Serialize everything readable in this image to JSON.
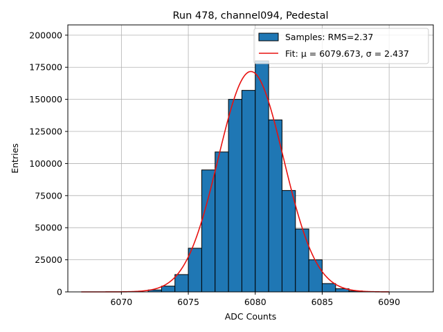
{
  "chart_data": {
    "type": "bar",
    "title": "Run 478, channel094, Pedestal",
    "xlabel": "ADC Counts",
    "ylabel": "Entries",
    "xlim": [
      6066,
      6093.3
    ],
    "ylim": [
      0,
      208000
    ],
    "xticks": [
      6070,
      6075,
      6080,
      6085,
      6090
    ],
    "yticks": [
      0,
      25000,
      50000,
      75000,
      100000,
      125000,
      150000,
      175000,
      200000
    ],
    "grid": true,
    "legend_position": "top-right",
    "bin_edges": [
      6071,
      6072,
      6073,
      6074,
      6075,
      6076,
      6077,
      6078,
      6079,
      6080,
      6081,
      6082,
      6083,
      6084,
      6085,
      6086,
      6087,
      6088,
      6089
    ],
    "bins": [
      0,
      1500,
      4500,
      13500,
      34000,
      95000,
      109000,
      150000,
      157000,
      180000,
      134000,
      79000,
      49000,
      25000,
      6500,
      2500,
      700,
      0
    ],
    "fit": {
      "mu": 6079.673,
      "sigma": 2.437,
      "amplitude": 171700,
      "x_range": [
        6067,
        6090
      ]
    },
    "series": [
      {
        "name": "Samples: RMS=2.37",
        "kind": "histogram",
        "color": "#1f77b4",
        "edgecolor": "#000000"
      },
      {
        "name": "Fit: μ = 6079.673, σ = 2.437",
        "kind": "line",
        "color": "#e8110f"
      }
    ]
  }
}
